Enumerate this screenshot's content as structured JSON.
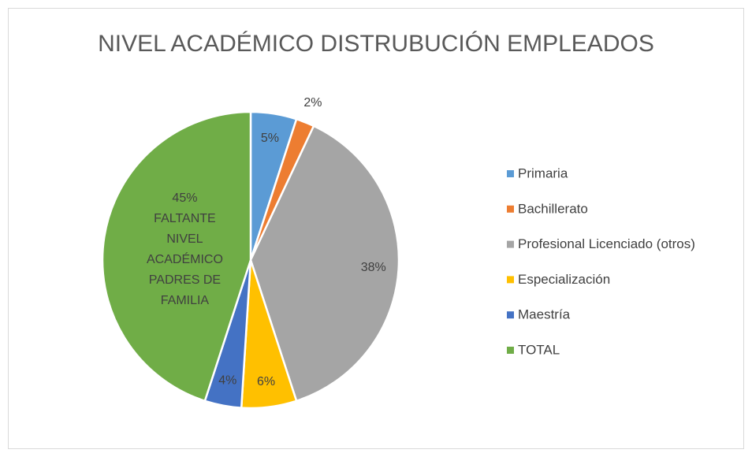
{
  "chart_data": {
    "type": "pie",
    "title": "NIVEL ACADÉMICO DISTRUBUCIÓN EMPLEADOS",
    "categories": [
      "Primaria",
      "Bachillerato",
      "Profesional Licenciado (otros)",
      "Especialización",
      "Maestría",
      "TOTAL"
    ],
    "values": [
      5,
      2,
      38,
      6,
      4,
      45
    ],
    "value_labels": [
      "5%",
      "2%",
      "38%",
      "6%",
      "4%",
      "45%"
    ],
    "colors": [
      "#5b9bd5",
      "#ed7d31",
      "#a5a5a5",
      "#ffc000",
      "#4472c4",
      "#70ad47"
    ],
    "annotation": [
      "FALTANTE",
      "NIVEL",
      "ACADÉMICO",
      "PADRES DE",
      "FAMILIA"
    ],
    "legend": "right"
  }
}
